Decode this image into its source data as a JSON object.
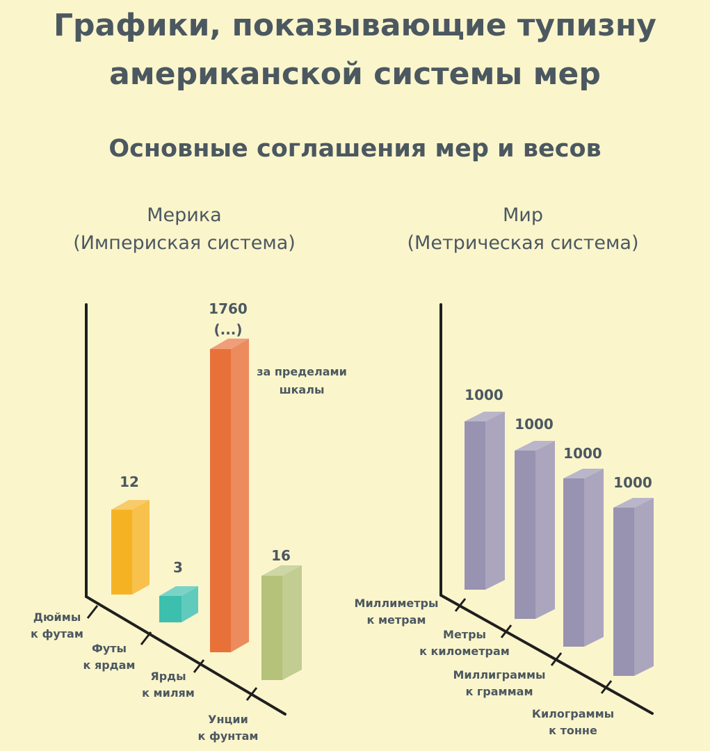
{
  "title_line1": "Графики, показывающие тупизну",
  "title_line2": "американской системы мер",
  "subtitle": "Основные соглашения мер и весов",
  "chart_data": [
    {
      "type": "bar",
      "title": "Мерика",
      "subtitle": "(Империская система)",
      "categories": [
        [
          "Дюймы",
          "к футам"
        ],
        [
          "Футы",
          "к ярдам"
        ],
        [
          "Ярды",
          "к милям"
        ],
        [
          "Унции",
          "к фунтам"
        ]
      ],
      "values": [
        12,
        3,
        1760,
        16
      ],
      "value_labels": [
        [
          "12"
        ],
        [
          "3"
        ],
        [
          "1760",
          "(...)"
        ],
        [
          "16"
        ]
      ],
      "colors": [
        "#f5b324",
        "#3dbfae",
        "#e8713a",
        "#b5c279"
      ],
      "annotation": [
        "за пределами",
        "шкалы"
      ]
    },
    {
      "type": "bar",
      "title": "Мир",
      "subtitle": "(Метрическая система)",
      "categories": [
        [
          "Миллиметры",
          "к метрам"
        ],
        [
          "Метры",
          "к километрам"
        ],
        [
          "Миллиграммы",
          "к граммам"
        ],
        [
          "Килограммы",
          "к тонне"
        ]
      ],
      "values": [
        1000,
        1000,
        1000,
        1000
      ],
      "value_labels": [
        [
          "1000"
        ],
        [
          "1000"
        ],
        [
          "1000"
        ],
        [
          "1000"
        ]
      ],
      "colors": [
        "#9893b0",
        "#9893b0",
        "#9893b0",
        "#9893b0"
      ]
    }
  ]
}
